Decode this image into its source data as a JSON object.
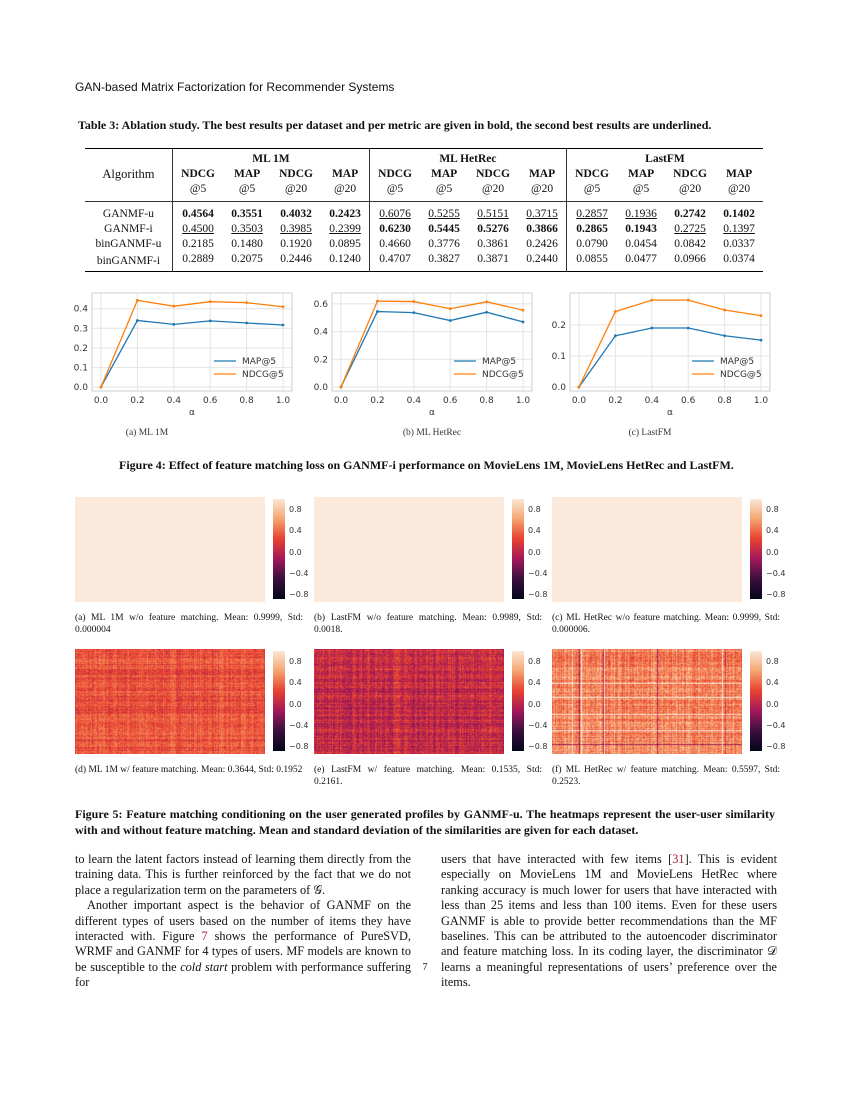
{
  "running_header": "GAN-based Matrix Factorization for Recommender Systems",
  "table": {
    "caption": "Table 3: Ablation study. The best results per dataset and per metric are given in bold, the second best results are underlined.",
    "algorithm_header": "Algorithm",
    "datasets": [
      "ML 1M",
      "ML HetRec",
      "LastFM"
    ],
    "metrics": [
      [
        "NDCG",
        "@5"
      ],
      [
        "MAP",
        "@5"
      ],
      [
        "NDCG",
        "@20"
      ],
      [
        "MAP",
        "@20"
      ]
    ],
    "rows": [
      {
        "name": "GANMF-u",
        "values": [
          "0.4564",
          "0.3551",
          "0.4032",
          "0.2423",
          "0.6076",
          "0.5255",
          "0.5151",
          "0.3715",
          "0.2857",
          "0.1936",
          "0.2742",
          "0.1402"
        ],
        "style": [
          "b",
          "b",
          "b",
          "b",
          "u",
          "u",
          "u",
          "u",
          "u",
          "u",
          "b",
          "b"
        ]
      },
      {
        "name": "GANMF-i",
        "values": [
          "0.4500",
          "0.3503",
          "0.3985",
          "0.2399",
          "0.6230",
          "0.5445",
          "0.5276",
          "0.3866",
          "0.2865",
          "0.1943",
          "0.2725",
          "0.1397"
        ],
        "style": [
          "u",
          "u",
          "u",
          "u",
          "b",
          "b",
          "b",
          "b",
          "b",
          "b",
          "u",
          "u"
        ]
      },
      {
        "name": "binGANMF-u",
        "values": [
          "0.2185",
          "0.1480",
          "0.1920",
          "0.0895",
          "0.4660",
          "0.3776",
          "0.3861",
          "0.2426",
          "0.0790",
          "0.0454",
          "0.0842",
          "0.0337"
        ],
        "style": [
          "",
          "",
          "",
          "",
          "",
          "",
          "",
          "",
          "",
          "",
          "",
          ""
        ]
      },
      {
        "name": "binGANMF-i",
        "values": [
          "0.2889",
          "0.2075",
          "0.2446",
          "0.1240",
          "0.4707",
          "0.3827",
          "0.3871",
          "0.2440",
          "0.0855",
          "0.0477",
          "0.0966",
          "0.0374"
        ],
        "style": [
          "",
          "",
          "",
          "",
          "",
          "",
          "",
          "",
          "",
          "",
          "",
          ""
        ]
      }
    ]
  },
  "chart_data": [
    {
      "type": "line",
      "subcaption": "(a) ML 1M",
      "xlabel": "α",
      "x": [
        0.0,
        0.2,
        0.4,
        0.6,
        0.8,
        1.0
      ],
      "xticks": [
        "0.0",
        "0.2",
        "0.4",
        "0.6",
        "0.8",
        "1.0"
      ],
      "yticks": [
        "0.0",
        "0.1",
        "0.2",
        "0.3",
        "0.4"
      ],
      "ytickvals": [
        0,
        0.1,
        0.2,
        0.3,
        0.4
      ],
      "ylim": [
        0,
        0.46
      ],
      "grid": true,
      "legend": "bottom-right",
      "series": [
        {
          "name": "MAP@5",
          "color": "#1f77b4",
          "values": [
            0,
            0.34,
            0.32,
            0.338,
            0.327,
            0.317
          ]
        },
        {
          "name": "NDCG@5",
          "color": "#ff7f0e",
          "values": [
            0,
            0.443,
            0.413,
            0.436,
            0.431,
            0.41
          ]
        }
      ]
    },
    {
      "type": "line",
      "subcaption": "(b) ML HetRec",
      "xlabel": "α",
      "x": [
        0.0,
        0.2,
        0.4,
        0.6,
        0.8,
        1.0
      ],
      "xticks": [
        "0.0",
        "0.2",
        "0.4",
        "0.6",
        "0.8",
        "1.0"
      ],
      "yticks": [
        "0.0",
        "0.2",
        "0.4",
        "0.6"
      ],
      "ytickvals": [
        0,
        0.2,
        0.4,
        0.6
      ],
      "ylim": [
        0,
        0.65
      ],
      "grid": true,
      "legend": "bottom-right",
      "series": [
        {
          "name": "MAP@5",
          "color": "#1f77b4",
          "values": [
            0,
            0.545,
            0.537,
            0.48,
            0.54,
            0.47
          ]
        },
        {
          "name": "NDCG@5",
          "color": "#ff7f0e",
          "values": [
            0,
            0.62,
            0.617,
            0.565,
            0.615,
            0.555
          ]
        }
      ]
    },
    {
      "type": "line",
      "subcaption": "(c) LastFM",
      "xlabel": "α",
      "x": [
        0.0,
        0.2,
        0.4,
        0.6,
        0.8,
        1.0
      ],
      "xticks": [
        "0.0",
        "0.2",
        "0.4",
        "0.6",
        "0.8",
        "1.0"
      ],
      "yticks": [
        "0.0",
        "0.1",
        "0.2"
      ],
      "ytickvals": [
        0,
        0.1,
        0.2
      ],
      "ylim": [
        0,
        0.29
      ],
      "grid": true,
      "legend": "bottom-right",
      "series": [
        {
          "name": "MAP@5",
          "color": "#1f77b4",
          "values": [
            0,
            0.165,
            0.19,
            0.19,
            0.165,
            0.151
          ]
        },
        {
          "name": "NDCG@5",
          "color": "#ff7f0e",
          "values": [
            0,
            0.243,
            0.28,
            0.28,
            0.248,
            0.23
          ]
        }
      ]
    }
  ],
  "figure4_caption": "Figure 4: Effect of feature matching loss on GANMF-i performance on MovieLens 1M, MovieLens HetRec and LastFM.",
  "heatmaps": {
    "colorbar_ticks": [
      "0.8",
      "0.4",
      "0.0",
      "−0.4",
      "−0.8"
    ],
    "items": [
      {
        "caption": "(a) ML 1M w/o feature matching. Mean: 0.9999, Std: 0.000004",
        "mean": 0.9999,
        "std": 4e-06
      },
      {
        "caption": "(b) LastFM w/o feature matching. Mean: 0.9989, Std: 0.0018.",
        "mean": 0.9989,
        "std": 0.0018
      },
      {
        "caption": "(c) ML HetRec w/o feature matching. Mean: 0.9999, Std: 0.000006.",
        "mean": 0.9999,
        "std": 6e-06
      },
      {
        "caption": "(d) ML 1M w/ feature matching. Mean: 0.3644, Std: 0.1952",
        "mean": 0.3644,
        "std": 0.1952
      },
      {
        "caption": "(e) LastFM w/ feature matching. Mean: 0.1535, Std: 0.2161.",
        "mean": 0.1535,
        "std": 0.2161
      },
      {
        "caption": "(f) ML HetRec w/ feature matching. Mean: 0.5597, Std: 0.2523.",
        "mean": 0.5597,
        "std": 0.2523
      }
    ]
  },
  "figure5_caption": "Figure 5: Feature matching conditioning on the user generated profiles by GANMF-u. The heatmaps represent the user-user similarity with and without feature matching. Mean and standard deviation of the similarities are given for each dataset.",
  "body": {
    "col1_p1": "to learn the latent factors instead of learning them directly from the training data. This is further reinforced by the fact that we do not place a regularization term on the parameters of 𝒢.",
    "col1_p2a": "Another important aspect is the behavior of GANMF on the different types of users based on the number of items they have interacted with. Figure ",
    "col1_ref": "7",
    "col1_p2b": " shows the performance of PureSVD, WRMF and GANMF for 4 types of users. MF models are known to be susceptible to the ",
    "col1_em": "cold start",
    "col1_p2c": " problem with performance suffering for",
    "col2_a": "users that have interacted with few items [",
    "col2_ref": "31",
    "col2_b": "]. This is evident especially on MovieLens 1M and MovieLens HetRec where ranking accuracy is much lower for users that have interacted with less than 25 items and less than 100 items. Even for these users GANMF is able to provide better recommendations than the MF baselines. This can be attributed to the autoencoder discriminator and feature matching loss. In its coding layer, the discriminator 𝒟 learns a meaningful representations of users’ preference over the items."
  },
  "page_number": "7"
}
